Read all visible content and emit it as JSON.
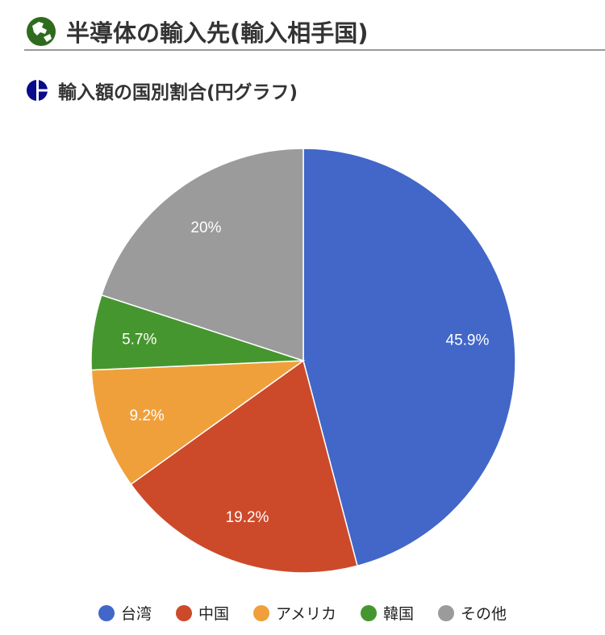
{
  "header": {
    "title": "半導体の輸入先(輸入相手国)",
    "icon": "globe-icon",
    "icon_color": "#2e6b1e"
  },
  "section": {
    "title": "輸入額の国別割合(円グラフ)",
    "icon": "pie-chart-icon",
    "icon_color": "#0a0a8c"
  },
  "chart_data": {
    "type": "pie",
    "title": "輸入額の国別割合(円グラフ)",
    "categories": [
      "台湾",
      "中国",
      "アメリカ",
      "韓国",
      "その他"
    ],
    "values": [
      45.9,
      19.2,
      9.2,
      5.7,
      20
    ],
    "labels": [
      "45.9%",
      "19.2%",
      "9.2%",
      "5.7%",
      "20%"
    ],
    "colors": [
      "#4267c8",
      "#cc4a2a",
      "#f0a03a",
      "#46962f",
      "#9b9b9b"
    ],
    "legend": "bottom"
  }
}
